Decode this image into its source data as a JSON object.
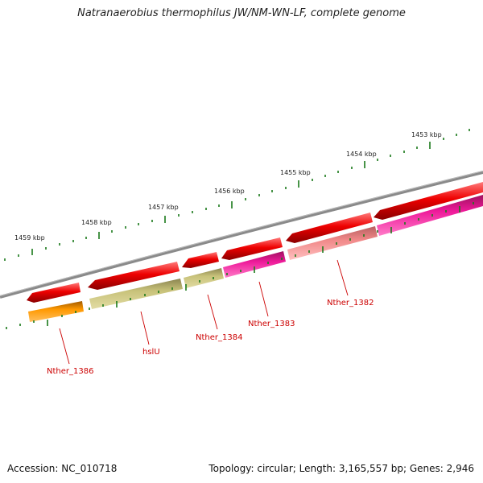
{
  "title": "Natranaerobius thermophilus JW/NM-WN-LF, complete genome",
  "footer": {
    "accession": "Accession: NC_010718",
    "topology": "Topology: circular; Length: 3,165,557 bp; Genes: 2,946"
  },
  "scale": {
    "ticks": [
      "1459 kbp",
      "1458 kbp",
      "1457 kbp",
      "1456 kbp",
      "1455 kbp",
      "1454 kbp",
      "1453 kbp"
    ]
  },
  "genes": {
    "labels": [
      "Nther_1386",
      "hslU",
      "Nther_1384",
      "Nther_1383",
      "Nther_1382"
    ]
  },
  "colors": {
    "backbone": "#888888",
    "forward_red": "#ee0000",
    "orange": "#ff9900",
    "olive": "#c8c27a",
    "magenta": "#ee1a9a",
    "salmon": "#f08888",
    "tick_green": "#1a7a1a",
    "label_red": "#cc0000"
  }
}
